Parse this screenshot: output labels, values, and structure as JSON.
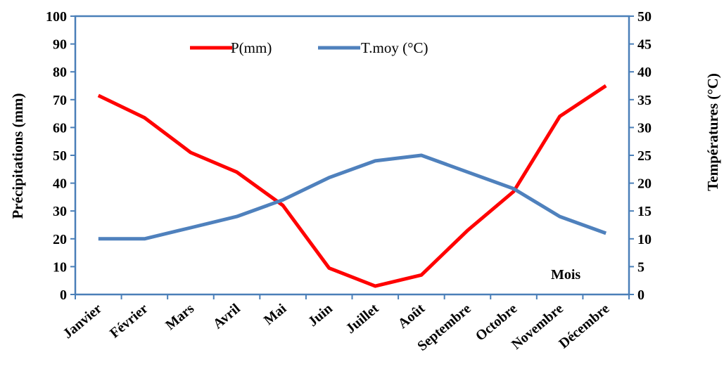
{
  "chart_data": {
    "type": "line",
    "categories": [
      "Janvier",
      "Février",
      "Mars",
      "Avril",
      "Mai",
      "Juin",
      "Juillet",
      "Août",
      "Septembre",
      "Octobre",
      "Novembre",
      "Décembre"
    ],
    "series": [
      {
        "name": "P(mm)",
        "axis": "left",
        "color": "#ff0000",
        "values": [
          71.5,
          63.5,
          51,
          44,
          32,
          9.5,
          3,
          7,
          23,
          37,
          64,
          75
        ]
      },
      {
        "name": "T.moy (°C)",
        "axis": "right",
        "color": "#4f81bd",
        "values": [
          10,
          10,
          12,
          14,
          17,
          21,
          24,
          25,
          22,
          19,
          14,
          11
        ]
      }
    ],
    "ylabel": "Précipitations (mm)",
    "ylabel_right": "Températures (°C)",
    "xlabel": "Mois",
    "ylim": [
      0,
      100
    ],
    "ylim_right": [
      0,
      50
    ],
    "yticks": [
      "0",
      "10",
      "20",
      "30",
      "40",
      "50",
      "60",
      "70",
      "80",
      "90",
      "100"
    ],
    "yticks_right": [
      "0",
      "5",
      "10",
      "15",
      "20",
      "25",
      "30",
      "35",
      "40",
      "45",
      "50"
    ],
    "grid": false,
    "legend_position": "top"
  }
}
